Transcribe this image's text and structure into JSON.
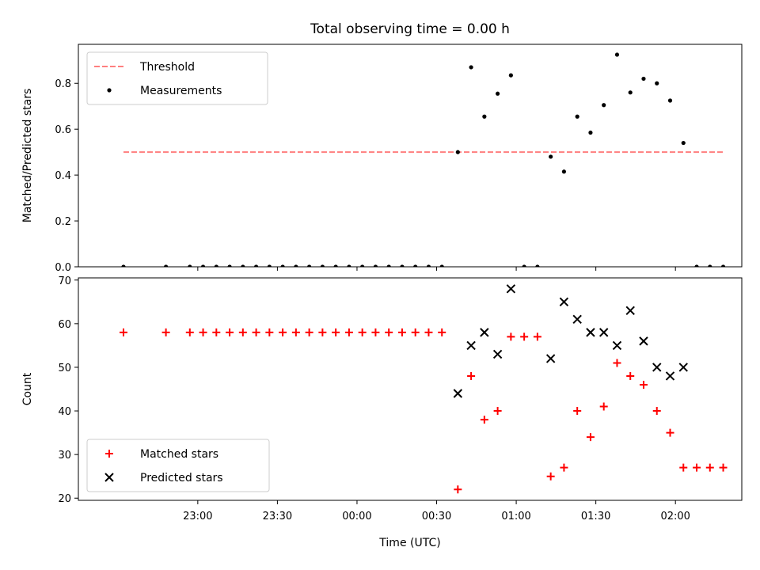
{
  "chart_data": {
    "type": "scatter",
    "title": "Total observing time = 0.00 h",
    "xlabel": "Time (UTC)",
    "x_unit": "time-of-day (UTC, HH:MM; times after midnight are next day)",
    "x_ticks": [
      "23:00",
      "23:30",
      "00:00",
      "00:30",
      "01:00",
      "01:30",
      "02:00"
    ],
    "x_range": [
      "22:15",
      "02:25"
    ],
    "times": [
      "22:32",
      "22:48",
      "22:57",
      "23:02",
      "23:07",
      "23:12",
      "23:17",
      "23:22",
      "23:27",
      "23:32",
      "23:37",
      "23:42",
      "23:47",
      "23:52",
      "23:57",
      "00:02",
      "00:07",
      "00:12",
      "00:17",
      "00:22",
      "00:27",
      "00:32",
      "00:38",
      "00:43",
      "00:48",
      "00:53",
      "00:58",
      "01:03",
      "01:08",
      "01:13",
      "01:18",
      "01:23",
      "01:28",
      "01:33",
      "01:38",
      "01:43",
      "01:48",
      "01:53",
      "01:58",
      "02:03",
      "02:08",
      "02:13",
      "02:18"
    ],
    "panels": [
      {
        "name": "ratio",
        "ylabel": "Matched/Predicted stars",
        "ylim": [
          0.0,
          0.97
        ],
        "yticks": [
          "0.0",
          "0.2",
          "0.4",
          "0.6",
          "0.8"
        ],
        "legend": {
          "placement": "upper left",
          "entries": [
            "Threshold",
            "Measurements"
          ]
        },
        "threshold": {
          "name": "Threshold",
          "y": 0.5,
          "x_from": "22:32",
          "x_to": "02:18",
          "color": "#ff7f7f",
          "style": "dashed"
        },
        "series": [
          {
            "name": "Measurements",
            "marker": "dot",
            "color": "#000000",
            "values": [
              0,
              0,
              0,
              0,
              0,
              0,
              0,
              0,
              0,
              0,
              0,
              0,
              0,
              0,
              0,
              0,
              0,
              0,
              0,
              0,
              0,
              0,
              0.5,
              0.87,
              0.655,
              0.755,
              0.835,
              0,
              0,
              0.48,
              0.415,
              0.655,
              0.585,
              0.705,
              0.925,
              0.76,
              0.82,
              0.8,
              0.725,
              0.54,
              0,
              0,
              0
            ]
          }
        ]
      },
      {
        "name": "counts",
        "ylabel": "Count",
        "ylim": [
          19.5,
          70.5
        ],
        "yticks": [
          "20",
          "30",
          "40",
          "50",
          "60",
          "70"
        ],
        "legend": {
          "placement": "lower left",
          "entries": [
            "Matched stars",
            "Predicted stars"
          ]
        },
        "series": [
          {
            "name": "Matched stars",
            "marker": "plus",
            "color": "#ff0000",
            "values": [
              58,
              58,
              58,
              58,
              58,
              58,
              58,
              58,
              58,
              58,
              58,
              58,
              58,
              58,
              58,
              58,
              58,
              58,
              58,
              58,
              58,
              58,
              22,
              48,
              38,
              40,
              57,
              57,
              57,
              25,
              27,
              40,
              34,
              41,
              51,
              48,
              46,
              40,
              35,
              27,
              27,
              27,
              27
            ]
          },
          {
            "name": "Predicted stars",
            "marker": "x",
            "color": "#000000",
            "values": [
              null,
              null,
              null,
              null,
              null,
              null,
              null,
              null,
              null,
              null,
              null,
              null,
              null,
              null,
              null,
              null,
              null,
              null,
              null,
              null,
              null,
              null,
              44,
              55,
              58,
              53,
              68,
              null,
              null,
              52,
              65,
              61,
              58,
              58,
              55,
              63,
              56,
              50,
              48,
              50,
              null,
              null,
              null
            ]
          }
        ]
      }
    ]
  }
}
